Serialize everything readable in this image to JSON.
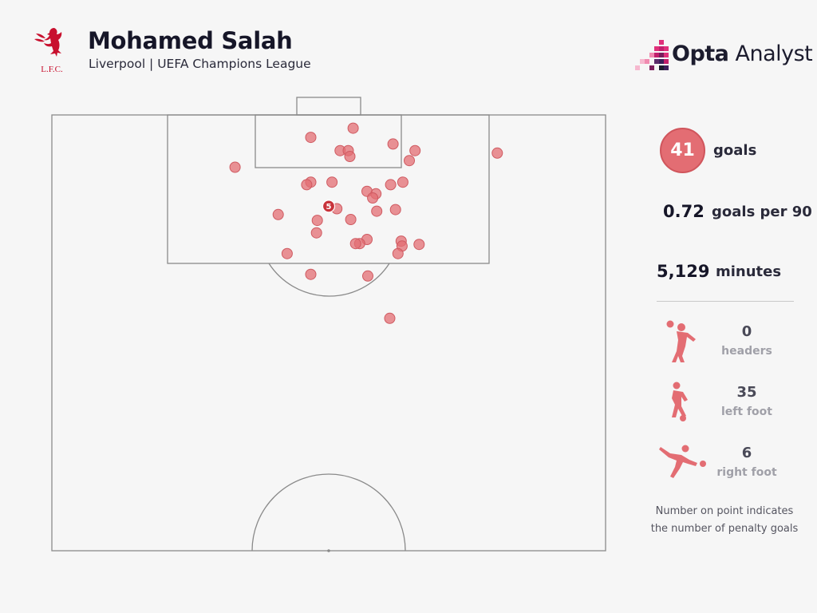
{
  "header": {
    "player_name": "Mohamed Salah",
    "subtitle": "Liverpool | UEFA Champions League",
    "crest_icon": "lfc-crest-icon",
    "crest_text": "L.F.C.",
    "brand_bold": "Opta",
    "brand_light": " Analyst"
  },
  "stats": {
    "goals_value": "41",
    "goals_label": "goals",
    "per90_value": "0.72",
    "per90_label": "goals per 90",
    "minutes_value": "5,129",
    "minutes_label": "minutes"
  },
  "goal_types": [
    {
      "value": "0",
      "label": "headers",
      "icon": "header-player-icon"
    },
    {
      "value": "35",
      "label": "left foot",
      "icon": "left-foot-player-icon"
    },
    {
      "value": "6",
      "label": "right foot",
      "icon": "right-foot-player-icon"
    }
  ],
  "note": {
    "line1": "Number on point indicates",
    "line2": "the number of penalty goals"
  },
  "colors": {
    "shot": "#e36d73",
    "shot_stroke": "#cf5a61",
    "penalty": "#c8323a",
    "accent": "#c8102e",
    "pitch_line": "#8a8a8a"
  },
  "chart_data": {
    "type": "scatter",
    "title": "Mohamed Salah",
    "subtitle": "Liverpool | UEFA Champions League",
    "xlabel": "",
    "ylabel": "",
    "x_desc": "pitch width in metres from left touchline (0-68)",
    "y_desc": "distance from goal line in metres (0-52.5)",
    "xlim": [
      0,
      68
    ],
    "ylim": [
      0,
      52.5
    ],
    "grid": false,
    "series": [
      {
        "name": "goals",
        "points": [
          {
            "x": 37.0,
            "y": 1.6
          },
          {
            "x": 31.8,
            "y": 2.7
          },
          {
            "x": 41.9,
            "y": 3.5
          },
          {
            "x": 35.4,
            "y": 4.3
          },
          {
            "x": 36.4,
            "y": 4.3
          },
          {
            "x": 44.6,
            "y": 4.3
          },
          {
            "x": 36.6,
            "y": 5.0
          },
          {
            "x": 43.9,
            "y": 5.5
          },
          {
            "x": 54.7,
            "y": 4.6
          },
          {
            "x": 22.5,
            "y": 6.3
          },
          {
            "x": 31.8,
            "y": 8.1
          },
          {
            "x": 31.3,
            "y": 8.4
          },
          {
            "x": 34.4,
            "y": 8.1
          },
          {
            "x": 43.1,
            "y": 8.1
          },
          {
            "x": 41.6,
            "y": 8.4
          },
          {
            "x": 38.7,
            "y": 9.2
          },
          {
            "x": 39.8,
            "y": 9.5
          },
          {
            "x": 39.4,
            "y": 10.0
          },
          {
            "x": 35.0,
            "y": 11.3
          },
          {
            "x": 39.9,
            "y": 11.6
          },
          {
            "x": 42.2,
            "y": 11.4
          },
          {
            "x": 27.8,
            "y": 12.0
          },
          {
            "x": 32.6,
            "y": 12.7
          },
          {
            "x": 36.7,
            "y": 12.6
          },
          {
            "x": 32.5,
            "y": 14.2
          },
          {
            "x": 38.7,
            "y": 15.0
          },
          {
            "x": 37.8,
            "y": 15.5
          },
          {
            "x": 37.3,
            "y": 15.5
          },
          {
            "x": 42.9,
            "y": 15.2
          },
          {
            "x": 45.1,
            "y": 15.6
          },
          {
            "x": 43.0,
            "y": 15.8
          },
          {
            "x": 28.9,
            "y": 16.7
          },
          {
            "x": 42.5,
            "y": 16.7
          },
          {
            "x": 31.8,
            "y": 19.2
          },
          {
            "x": 38.8,
            "y": 19.4
          },
          {
            "x": 41.5,
            "y": 24.5
          }
        ]
      },
      {
        "name": "penalty goals",
        "points": [
          {
            "x": 34.0,
            "y": 11.0,
            "count": 5
          }
        ]
      }
    ]
  }
}
